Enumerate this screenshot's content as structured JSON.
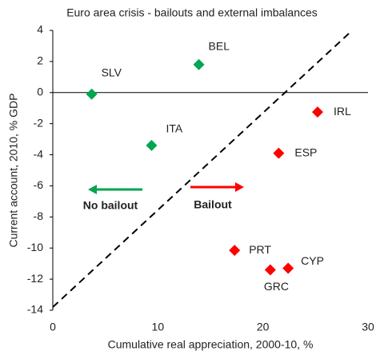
{
  "chart_data": {
    "type": "scatter",
    "title": "Euro area crisis - bailouts and external imbalances",
    "x_label": "Cumulative real appreciation, 2000-10, %",
    "y_label": "Current account, 2010, % GDP",
    "xlim": [
      0,
      30
    ],
    "xticks": [
      0,
      10,
      20,
      30
    ],
    "ylim": [
      -14,
      4
    ],
    "yticks": [
      -14,
      -12,
      -10,
      -8,
      -6,
      -4,
      -2,
      0,
      2,
      4
    ],
    "series": [
      {
        "name": "No bailout",
        "color": "#00a651",
        "labels": [
          "SLV",
          "BEL",
          "ITA"
        ],
        "x": [
          3.7,
          13.9,
          9.4
        ],
        "values": [
          -0.1,
          1.8,
          -3.4
        ]
      },
      {
        "name": "Bailout",
        "color": "#ff0000",
        "labels": [
          "IRL",
          "ESP",
          "PRT",
          "GRC",
          "CYP"
        ],
        "x": [
          25.2,
          21.5,
          17.3,
          20.7,
          22.4
        ],
        "values": [
          -1.25,
          -3.9,
          -10.15,
          -11.4,
          -11.3
        ]
      }
    ],
    "reference_line": {
      "x": [
        0,
        28.5
      ],
      "y": [
        -13.8,
        4
      ]
    }
  }
}
